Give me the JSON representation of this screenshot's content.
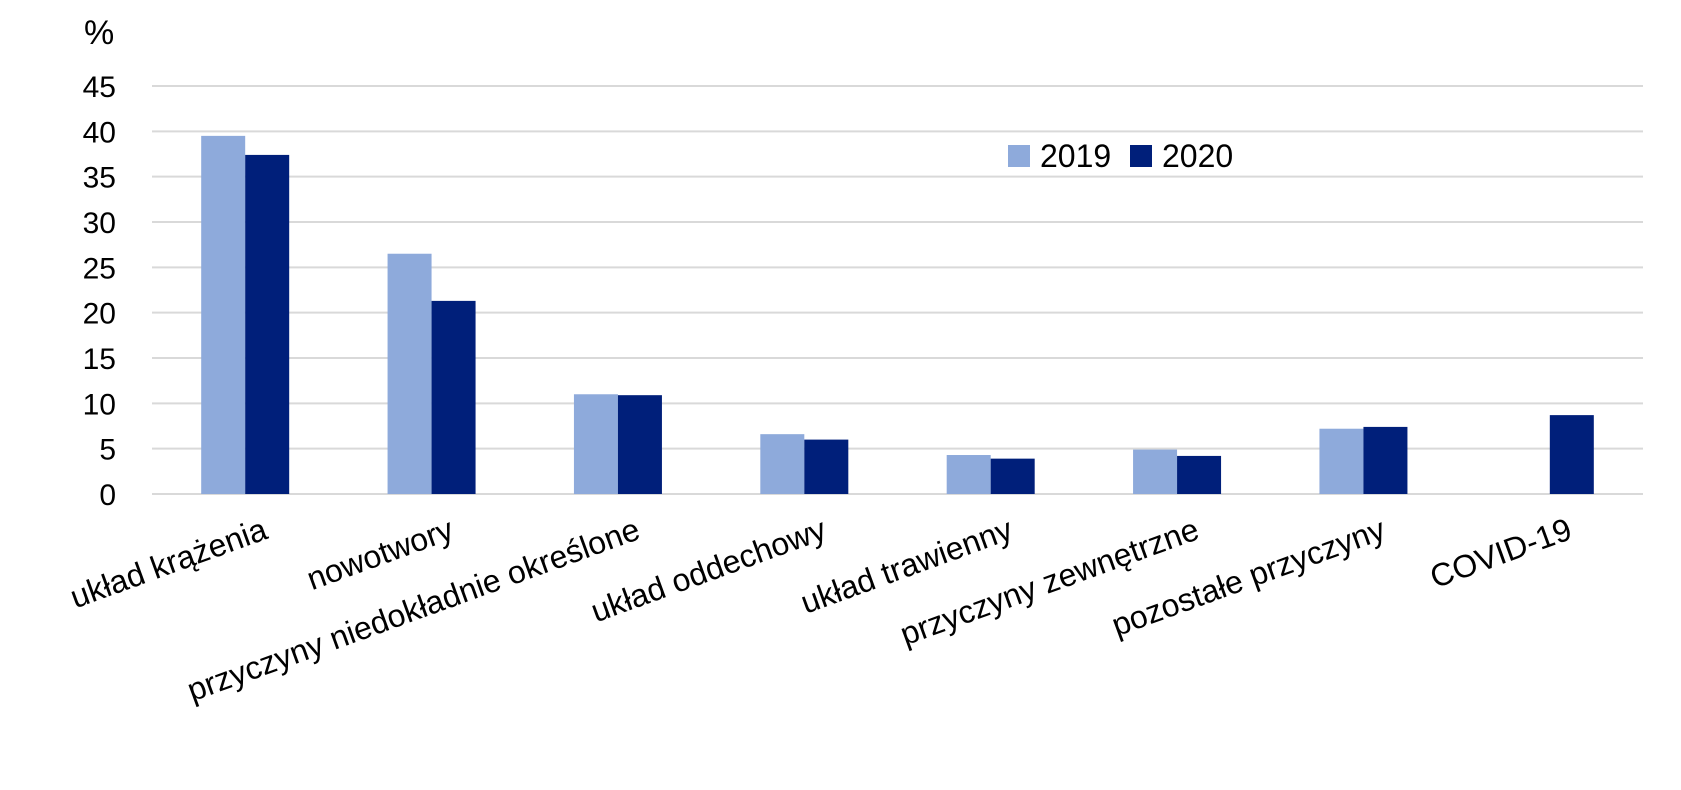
{
  "chart_data": {
    "type": "bar",
    "unit_label": "%",
    "categories": [
      "układ krążenia",
      "nowotwory",
      "przyczyny niedokładnie określone",
      "układ oddechowy",
      "układ trawienny",
      "przyczyny zewnętrzne",
      "pozostałe przyczyny",
      "COVID-19"
    ],
    "series": [
      {
        "name": "2019",
        "color": "#8eaadb",
        "values": [
          39.5,
          26.5,
          11.0,
          6.6,
          4.3,
          4.9,
          7.2,
          null
        ]
      },
      {
        "name": "2020",
        "color": "#001f7a",
        "values": [
          37.4,
          21.3,
          10.9,
          6.0,
          3.9,
          4.2,
          7.4,
          8.7
        ]
      }
    ],
    "yticks": [
      0,
      5,
      10,
      15,
      20,
      25,
      30,
      35,
      40,
      45
    ],
    "ylim": [
      0,
      45
    ],
    "grid": true,
    "legend_position": "top-right inside plot"
  }
}
